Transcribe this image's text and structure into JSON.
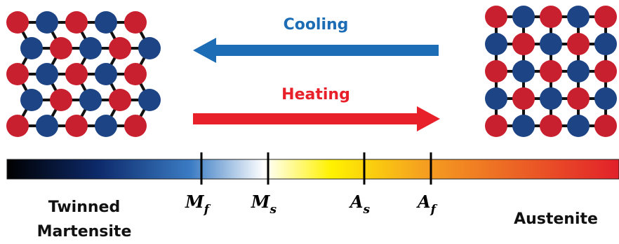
{
  "arrows": [
    {
      "label": "Cooling"
    },
    {
      "label": "Heating"
    }
  ],
  "markers": [
    {
      "symbol": "M",
      "subscript": "f"
    },
    {
      "symbol": "M",
      "subscript": "s"
    },
    {
      "symbol": "A",
      "subscript": "s"
    },
    {
      "symbol": "A",
      "subscript": "f"
    }
  ],
  "phases": [
    {
      "lines": [
        "Twinned",
        "Martensite"
      ]
    },
    {
      "lines": [
        "Austenite"
      ]
    }
  ]
}
